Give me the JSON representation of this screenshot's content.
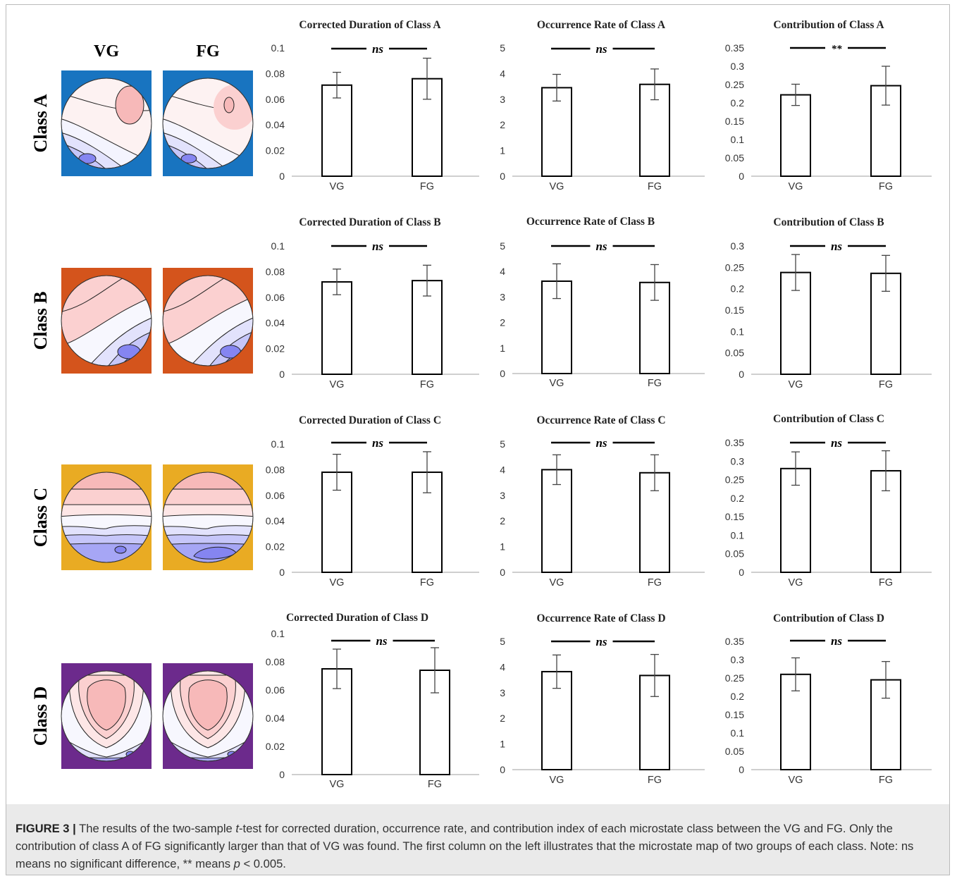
{
  "maps": {
    "group_labels": [
      "VG",
      "FG"
    ],
    "classes": [
      {
        "label": "Class A",
        "bg": "#1874c0"
      },
      {
        "label": "Class B",
        "bg": "#d4541c"
      },
      {
        "label": "Class C",
        "bg": "#e9ab23"
      },
      {
        "label": "Class D",
        "bg": "#6c2a8c"
      }
    ]
  },
  "colors": {
    "positive": "#f6b8b8",
    "negative": "#8080f2",
    "bar_fill": "#ffffff",
    "bar_stroke": "#000000",
    "axis": "#bfbfbf"
  },
  "chart_data": [
    {
      "type": "bar",
      "title": "Corrected Duration of Class A",
      "categories": [
        "VG",
        "FG"
      ],
      "values": [
        0.071,
        0.076
      ],
      "errors": [
        0.01,
        0.016
      ],
      "ylim": [
        0,
        0.1
      ],
      "ticks": [
        "0",
        "0.02",
        "0.04",
        "0.06",
        "0.08",
        "0.1"
      ],
      "significance": "ns"
    },
    {
      "type": "bar",
      "title": "Occurrence Rate of Class A",
      "categories": [
        "VG",
        "FG"
      ],
      "values": [
        3.45,
        3.58
      ],
      "errors": [
        0.52,
        0.6
      ],
      "ylim": [
        0,
        5
      ],
      "ticks": [
        "0",
        "1",
        "2",
        "3",
        "4",
        "5"
      ],
      "significance": "ns"
    },
    {
      "type": "bar",
      "title": "Contribution of Class A",
      "categories": [
        "VG",
        "FG"
      ],
      "values": [
        0.222,
        0.247
      ],
      "errors": [
        0.029,
        0.053
      ],
      "ylim": [
        0,
        0.35
      ],
      "ticks": [
        "0",
        "0.05",
        "0.1",
        "0.15",
        "0.2",
        "0.25",
        "0.3",
        "0.35"
      ],
      "significance": "**"
    },
    {
      "type": "bar",
      "title": "Corrected Duration of Class B",
      "categories": [
        "VG",
        "FG"
      ],
      "values": [
        0.072,
        0.073
      ],
      "errors": [
        0.01,
        0.012
      ],
      "ylim": [
        0,
        0.1
      ],
      "ticks": [
        "0",
        "0.02",
        "0.04",
        "0.06",
        "0.08",
        "0.1"
      ],
      "significance": "ns"
    },
    {
      "type": "bar",
      "title": "Occurrence Rate of Class B",
      "categories": [
        "VG",
        "FG"
      ],
      "values": [
        3.62,
        3.57
      ],
      "errors": [
        0.68,
        0.7
      ],
      "ylim": [
        0,
        5
      ],
      "ticks": [
        "0",
        "1",
        "2",
        "3",
        "4",
        "5"
      ],
      "significance": "ns"
    },
    {
      "type": "bar",
      "title": "Contribution of Class B",
      "categories": [
        "VG",
        "FG"
      ],
      "values": [
        0.238,
        0.236
      ],
      "errors": [
        0.042,
        0.042
      ],
      "ylim": [
        0,
        0.3
      ],
      "ticks": [
        "0",
        "0.05",
        "0.1",
        "0.15",
        "0.2",
        "0.25",
        "0.3"
      ],
      "significance": "ns"
    },
    {
      "type": "bar",
      "title": "Corrected Duration of Class C",
      "categories": [
        "VG",
        "FG"
      ],
      "values": [
        0.078,
        0.078
      ],
      "errors": [
        0.014,
        0.016
      ],
      "ylim": [
        0,
        0.1
      ],
      "ticks": [
        "0",
        "0.02",
        "0.04",
        "0.06",
        "0.08",
        "0.1"
      ],
      "significance": "ns"
    },
    {
      "type": "bar",
      "title": "Occurrence Rate of Class C",
      "categories": [
        "VG",
        "FG"
      ],
      "values": [
        4.0,
        3.88
      ],
      "errors": [
        0.58,
        0.7
      ],
      "ylim": [
        0,
        5
      ],
      "ticks": [
        "0",
        "1",
        "2",
        "3",
        "4",
        "5"
      ],
      "significance": "ns"
    },
    {
      "type": "bar",
      "title": "Contribution of Class C",
      "categories": [
        "VG",
        "FG"
      ],
      "values": [
        0.28,
        0.274
      ],
      "errors": [
        0.045,
        0.054
      ],
      "ylim": [
        0,
        0.35
      ],
      "ticks": [
        "0",
        "0.05",
        "0.1",
        "0.15",
        "0.2",
        "0.25",
        "0.3",
        "0.35"
      ],
      "significance": "ns"
    },
    {
      "type": "bar",
      "title": "Corrected Duration of Class D",
      "categories": [
        "VG",
        "FG"
      ],
      "values": [
        0.075,
        0.074
      ],
      "errors": [
        0.014,
        0.016
      ],
      "ylim": [
        0,
        0.1
      ],
      "ticks": [
        "0",
        "0.02",
        "0.04",
        "0.06",
        "0.08",
        "0.1"
      ],
      "significance": "ns"
    },
    {
      "type": "bar",
      "title": "Occurrence Rate of Class D",
      "categories": [
        "VG",
        "FG"
      ],
      "values": [
        3.82,
        3.67
      ],
      "errors": [
        0.65,
        0.82
      ],
      "ylim": [
        0,
        5
      ],
      "ticks": [
        "0",
        "1",
        "2",
        "3",
        "4",
        "5"
      ],
      "significance": "ns"
    },
    {
      "type": "bar",
      "title": "Contribution of Class D",
      "categories": [
        "VG",
        "FG"
      ],
      "values": [
        0.26,
        0.245
      ],
      "errors": [
        0.045,
        0.05
      ],
      "ylim": [
        0,
        0.35
      ],
      "ticks": [
        "0",
        "0.05",
        "0.1",
        "0.15",
        "0.2",
        "0.25",
        "0.3",
        "0.35"
      ],
      "significance": "ns"
    }
  ],
  "caption": {
    "label": "FIGURE 3 |",
    "p1": " The results of the two-sample ",
    "t": "t",
    "p2": "-test for corrected duration, occurrence rate, and contribution index of each microstate class between the VG and FG. Only the contribution of class A of FG significantly larger than that of VG was found. The first column on the left illustrates that the microstate map of two groups of each class. Note: ns means no significant difference, ** means ",
    "p": "p",
    "p3": " < 0.005."
  }
}
